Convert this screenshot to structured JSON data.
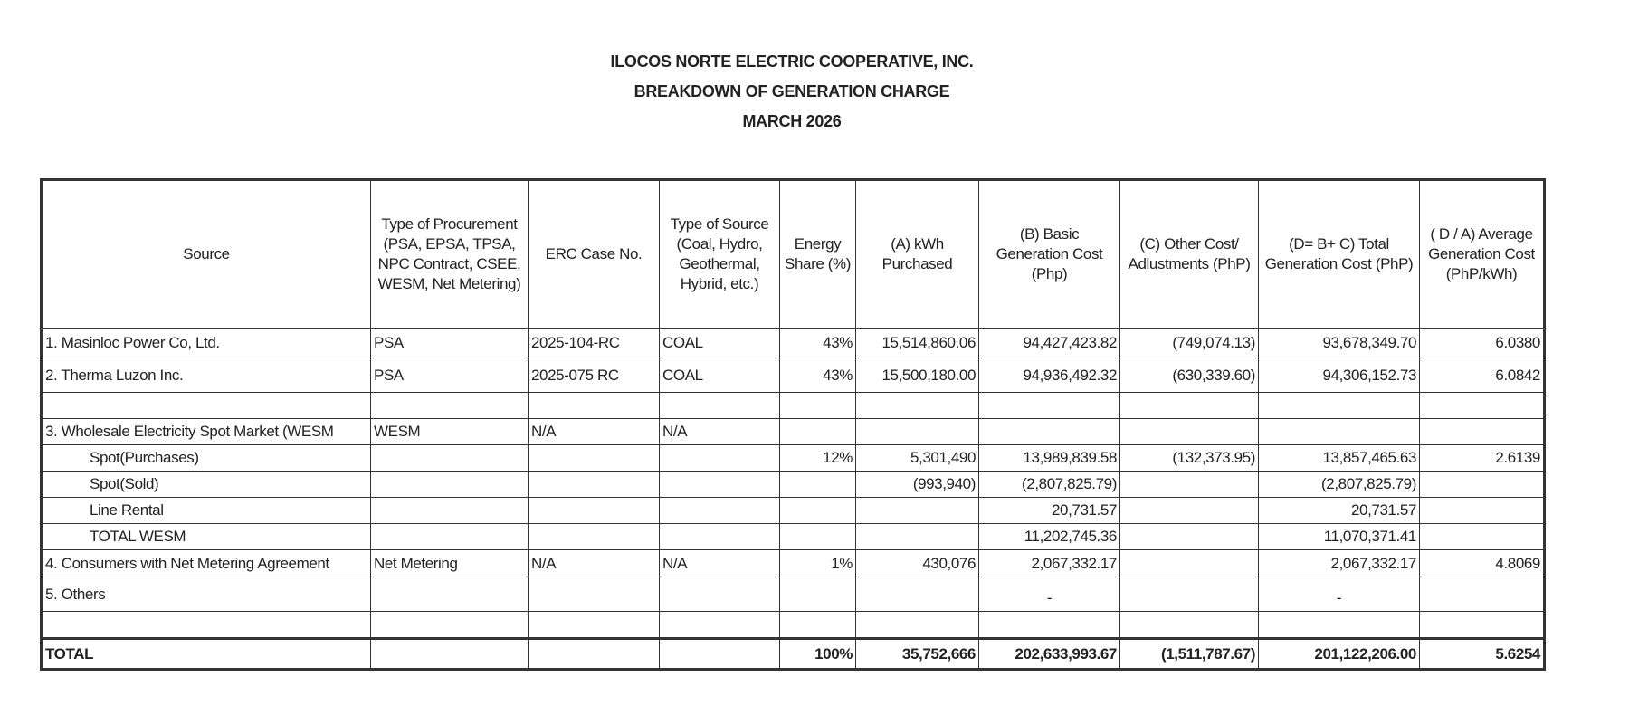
{
  "header": {
    "lines": [
      "ILOCOS NORTE ELECTRIC COOPERATIVE, INC.",
      "BREAKDOWN OF GENERATION CHARGE",
      "MARCH 2026"
    ]
  },
  "table": {
    "columns": [
      "Source",
      "Type of Procurement (PSA, EPSA, TPSA, NPC Contract, CSEE, WESM, Net Metering)",
      "ERC Case No.",
      "Type of Source (Coal, Hydro, Geothermal, Hybrid, etc.)",
      "Energy Share (%)",
      "(A) kWh Purchased",
      "(B) Basic Generation Cost (Php)",
      "(C) Other Cost/ Adlustments (PhP)",
      "(D= B+ C)  Total Generation Cost (PhP)",
      "( D / A) Average Generation Cost (PhP/kWh)"
    ],
    "rows": [
      [
        "1. Masinloc Power Co, Ltd.",
        "PSA",
        "2025-104-RC",
        "COAL",
        "43%",
        "15,514,860.06",
        "94,427,423.82",
        "(749,074.13)",
        "93,678,349.70",
        "6.0380"
      ],
      [
        "2. Therma Luzon Inc.",
        "PSA",
        "2025-075 RC",
        "COAL",
        "43%",
        "15,500,180.00",
        "94,936,492.32",
        "(630,339.60)",
        "94,306,152.73",
        "6.0842"
      ],
      [
        null,
        null,
        null,
        null,
        null,
        null,
        null,
        null,
        null,
        null
      ],
      [
        "3. Wholesale Electricity Spot Market (WESM",
        "WESM",
        "N/A",
        "N/A",
        null,
        null,
        null,
        null,
        null,
        null
      ],
      [
        "Spot(Purchases)",
        null,
        null,
        null,
        "12%",
        "5,301,490",
        "13,989,839.58",
        "(132,373.95)",
        "13,857,465.63",
        "2.6139"
      ],
      [
        "Spot(Sold)",
        null,
        null,
        null,
        null,
        "(993,940)",
        "(2,807,825.79)",
        null,
        "(2,807,825.79)",
        null
      ],
      [
        "Line Rental",
        null,
        null,
        null,
        null,
        null,
        "20,731.57",
        null,
        "20,731.57",
        null
      ],
      [
        "TOTAL WESM",
        null,
        null,
        null,
        null,
        null,
        "11,202,745.36",
        null,
        "11,070,371.41",
        null
      ],
      [
        "4. Consumers with Net Metering Agreement",
        "Net Metering",
        "N/A",
        "N/A",
        "1%",
        "430,076",
        "2,067,332.17",
        null,
        "2,067,332.17",
        "4.8069"
      ],
      [
        "5. Others",
        null,
        null,
        null,
        null,
        null,
        "-",
        null,
        "-",
        null
      ],
      [
        null,
        null,
        null,
        null,
        null,
        null,
        null,
        null,
        null,
        null
      ],
      [
        "TOTAL",
        null,
        null,
        null,
        "100%",
        "35,752,666",
        "202,633,993.67",
        "(1,511,787.67)",
        "201,122,206.00",
        "5.6254"
      ]
    ]
  }
}
